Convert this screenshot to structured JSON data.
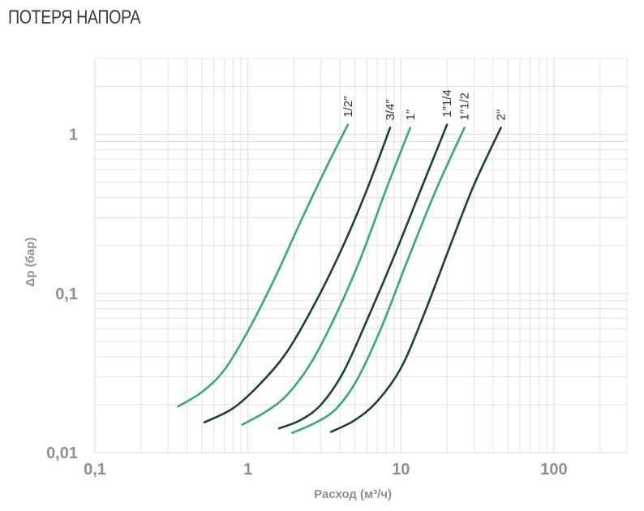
{
  "title": "ПОТЕРЯ НАПОРА",
  "colors": {
    "light_green": "#34ad72",
    "dark_green": "#17472a",
    "grid": "#dcdcdc",
    "tick_text": "#8f8f8f"
  },
  "chart_data": {
    "type": "line",
    "xscale": "log",
    "yscale": "log",
    "xlabel": "Расход (м³/ч)",
    "ylabel": "Δp (бар)",
    "xlim": [
      0.1,
      300
    ],
    "ylim": [
      0.01,
      3
    ],
    "grid": true,
    "xticks": [
      0.1,
      1,
      10,
      100
    ],
    "xtick_labels": [
      "0,1",
      "1",
      "10",
      "100"
    ],
    "yticks": [
      0.01,
      0.1,
      1
    ],
    "ytick_labels": [
      "0,01",
      "0,1",
      "1"
    ],
    "series": [
      {
        "name": "1/2″",
        "color": "#34ad72",
        "points": [
          [
            0.35,
            0.0195
          ],
          [
            0.5,
            0.024
          ],
          [
            0.7,
            0.033
          ],
          [
            1.0,
            0.058
          ],
          [
            1.5,
            0.125
          ],
          [
            2.2,
            0.28
          ],
          [
            3.2,
            0.6
          ],
          [
            4.5,
            1.15
          ]
        ]
      },
      {
        "name": "3/4″",
        "color": "#17472a",
        "points": [
          [
            0.52,
            0.0155
          ],
          [
            0.8,
            0.019
          ],
          [
            1.2,
            0.027
          ],
          [
            1.8,
            0.043
          ],
          [
            2.8,
            0.09
          ],
          [
            4.2,
            0.2
          ],
          [
            6.0,
            0.45
          ],
          [
            8.5,
            1.1
          ]
        ]
      },
      {
        "name": "1″",
        "color": "#34ad72",
        "points": [
          [
            0.92,
            0.015
          ],
          [
            1.3,
            0.018
          ],
          [
            1.8,
            0.023
          ],
          [
            2.6,
            0.037
          ],
          [
            3.8,
            0.075
          ],
          [
            5.5,
            0.17
          ],
          [
            8.0,
            0.45
          ],
          [
            11.5,
            1.1
          ]
        ]
      },
      {
        "name": "1″1/4",
        "color": "#17472a",
        "points": [
          [
            1.6,
            0.0142
          ],
          [
            2.2,
            0.016
          ],
          [
            3.0,
            0.02
          ],
          [
            4.2,
            0.032
          ],
          [
            6.0,
            0.068
          ],
          [
            9.0,
            0.17
          ],
          [
            13.5,
            0.45
          ],
          [
            20.0,
            1.15
          ]
        ]
      },
      {
        "name": "1″1/2",
        "color": "#34ad72",
        "points": [
          [
            1.95,
            0.0133
          ],
          [
            2.8,
            0.0155
          ],
          [
            3.8,
            0.019
          ],
          [
            5.2,
            0.029
          ],
          [
            7.5,
            0.062
          ],
          [
            11.0,
            0.16
          ],
          [
            17.0,
            0.45
          ],
          [
            26.0,
            1.1
          ]
        ]
      },
      {
        "name": "2″",
        "color": "#17472a",
        "points": [
          [
            3.5,
            0.0135
          ],
          [
            5.0,
            0.016
          ],
          [
            7.0,
            0.021
          ],
          [
            10.0,
            0.034
          ],
          [
            14.0,
            0.072
          ],
          [
            21.0,
            0.2
          ],
          [
            30.0,
            0.48
          ],
          [
            45.0,
            1.1
          ]
        ]
      }
    ]
  }
}
